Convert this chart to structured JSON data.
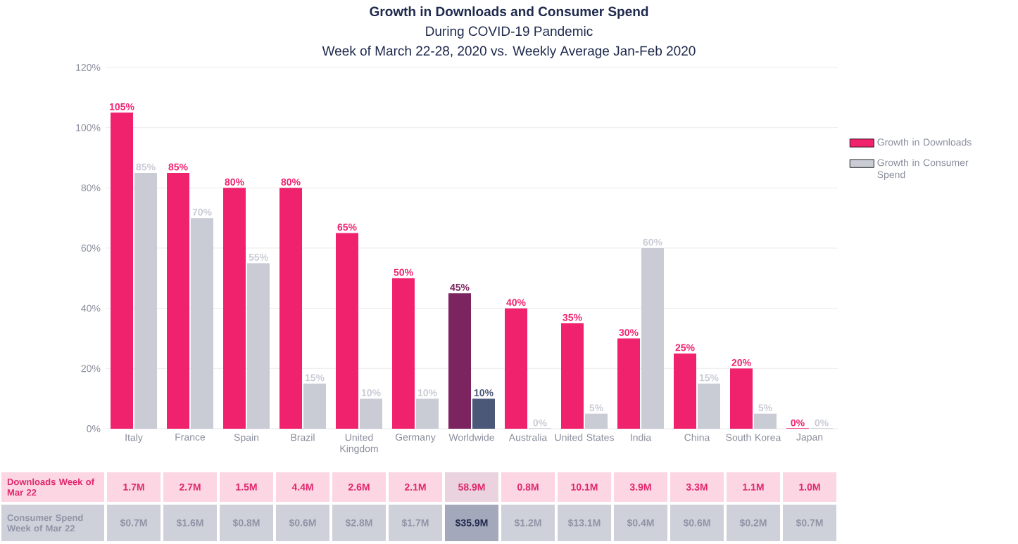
{
  "chart_data": {
    "type": "bar",
    "title": "Growth in Downloads and Consumer Spend",
    "subtitle": "During COVID-19 Pandemic",
    "categories": [
      "Italy",
      "France",
      "Spain",
      "Brazil",
      "United Kingdom",
      "Germany",
      "Worldwide",
      "Australia",
      "United States",
      "India",
      "China",
      "South Korea",
      "Japan"
    ],
    "series": [
      {
        "name": "Growth in Downloads",
        "color": "#f0226e",
        "colors": [
          "#f0226e",
          "#f0226e",
          "#f0226e",
          "#f0226e",
          "#f0226e",
          "#f0226e",
          "#7b2460",
          "#f0226e",
          "#f0226e",
          "#f0226e",
          "#f0226e",
          "#f0226e",
          "#f0226e"
        ],
        "values": [
          105,
          85,
          80,
          80,
          65,
          50,
          45,
          40,
          35,
          30,
          25,
          20,
          0
        ],
        "value_labels": [
          "105%",
          "85%",
          "80%",
          "80%",
          "65%",
          "50%",
          "45%",
          "40%",
          "35%",
          "30%",
          "25%",
          "20%",
          "0%"
        ]
      },
      {
        "name": "Growth in Consumer Spend",
        "color": "#c9cbd5",
        "colors": [
          "#c9cbd5",
          "#c9cbd5",
          "#c9cbd5",
          "#c9cbd5",
          "#c9cbd5",
          "#c9cbd5",
          "#4b5878",
          "#c9cbd5",
          "#c9cbd5",
          "#c9cbd5",
          "#c9cbd5",
          "#c9cbd5",
          "#c9cbd5"
        ],
        "values": [
          85,
          70,
          55,
          15,
          10,
          10,
          10,
          0,
          5,
          60,
          15,
          5,
          0
        ],
        "value_labels": [
          "85%",
          "70%",
          "55%",
          "15%",
          "10%",
          "10%",
          "10%",
          "0%",
          "5%",
          "60%",
          "15%",
          "5%",
          "0%"
        ]
      }
    ],
    "ylim": [
      0,
      120
    ],
    "yticks": [
      {
        "value": 0,
        "label": "0%"
      },
      {
        "value": 20,
        "label": "20%"
      },
      {
        "value": 40,
        "label": "40%"
      },
      {
        "value": 60,
        "label": "60%"
      },
      {
        "value": 80,
        "label": "80%"
      },
      {
        "value": 100,
        "label": "100%"
      },
      {
        "value": 120,
        "label": "120%"
      }
    ],
    "grid": "y",
    "legend": "right",
    "annotations": [
      "Week of March 22-28, 2020 vs. Weekly Average Jan-Feb 2020",
      "Downloads Week of Mar 22",
      "1.7M",
      "2.7M",
      "1.5M",
      "4.4M",
      "2.6M",
      "2.1M",
      "58.9M",
      "0.8M",
      "10.1M",
      "3.9M",
      "3.3M",
      "1.1M",
      "1.0M",
      "Consumer Spend Week of Mar 22",
      "$0.7M",
      "$1.6M",
      "$0.8M",
      "$0.6M",
      "$2.8M",
      "$1.7M",
      "$35.9M",
      "$1.2M",
      "$13.1M",
      "$0.4M",
      "$0.6M",
      "$0.2M",
      "$0.7M"
    ]
  }
}
